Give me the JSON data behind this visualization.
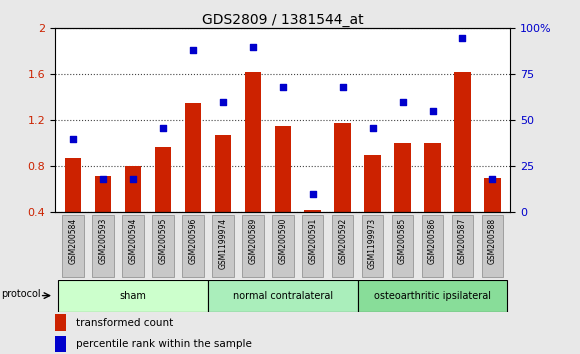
{
  "title": "GDS2809 / 1381544_at",
  "categories": [
    "GSM200584",
    "GSM200593",
    "GSM200594",
    "GSM200595",
    "GSM200596",
    "GSM1199974",
    "GSM200589",
    "GSM200590",
    "GSM200591",
    "GSM200592",
    "GSM1199973",
    "GSM200585",
    "GSM200586",
    "GSM200587",
    "GSM200588"
  ],
  "bar_values": [
    0.87,
    0.72,
    0.8,
    0.97,
    1.35,
    1.07,
    1.62,
    1.15,
    0.42,
    1.18,
    0.9,
    1.0,
    1.0,
    1.62,
    0.7
  ],
  "dot_values": [
    40,
    18,
    18,
    46,
    88,
    60,
    90,
    68,
    10,
    68,
    46,
    60,
    55,
    95,
    18
  ],
  "bar_color": "#cc2200",
  "dot_color": "#0000cc",
  "ylim_left": [
    0.4,
    2.0
  ],
  "ylim_right": [
    0,
    100
  ],
  "yticks_left": [
    0.4,
    0.8,
    1.2,
    1.6,
    2.0
  ],
  "ytick_labels_left": [
    "0.4",
    "0.8",
    "1.2",
    "1.6",
    "2"
  ],
  "yticks_right": [
    0,
    25,
    50,
    75,
    100
  ],
  "ytick_labels_right": [
    "0",
    "25",
    "50",
    "75",
    "100%"
  ],
  "groups": [
    {
      "label": "sham",
      "start": 0,
      "end": 4,
      "color": "#ccffcc"
    },
    {
      "label": "normal contralateral",
      "start": 5,
      "end": 9,
      "color": "#aaeebb"
    },
    {
      "label": "osteoarthritic ipsilateral",
      "start": 10,
      "end": 14,
      "color": "#88dd99"
    }
  ],
  "protocol_label": "protocol",
  "legend_bar": "transformed count",
  "legend_dot": "percentile rank within the sample",
  "background_color": "#e8e8e8",
  "plot_bg_color": "#ffffff",
  "title_fontsize": 10,
  "tick_label_color_left": "#cc2200",
  "tick_label_color_right": "#0000cc",
  "xtick_bg_color": "#c8c8c8"
}
